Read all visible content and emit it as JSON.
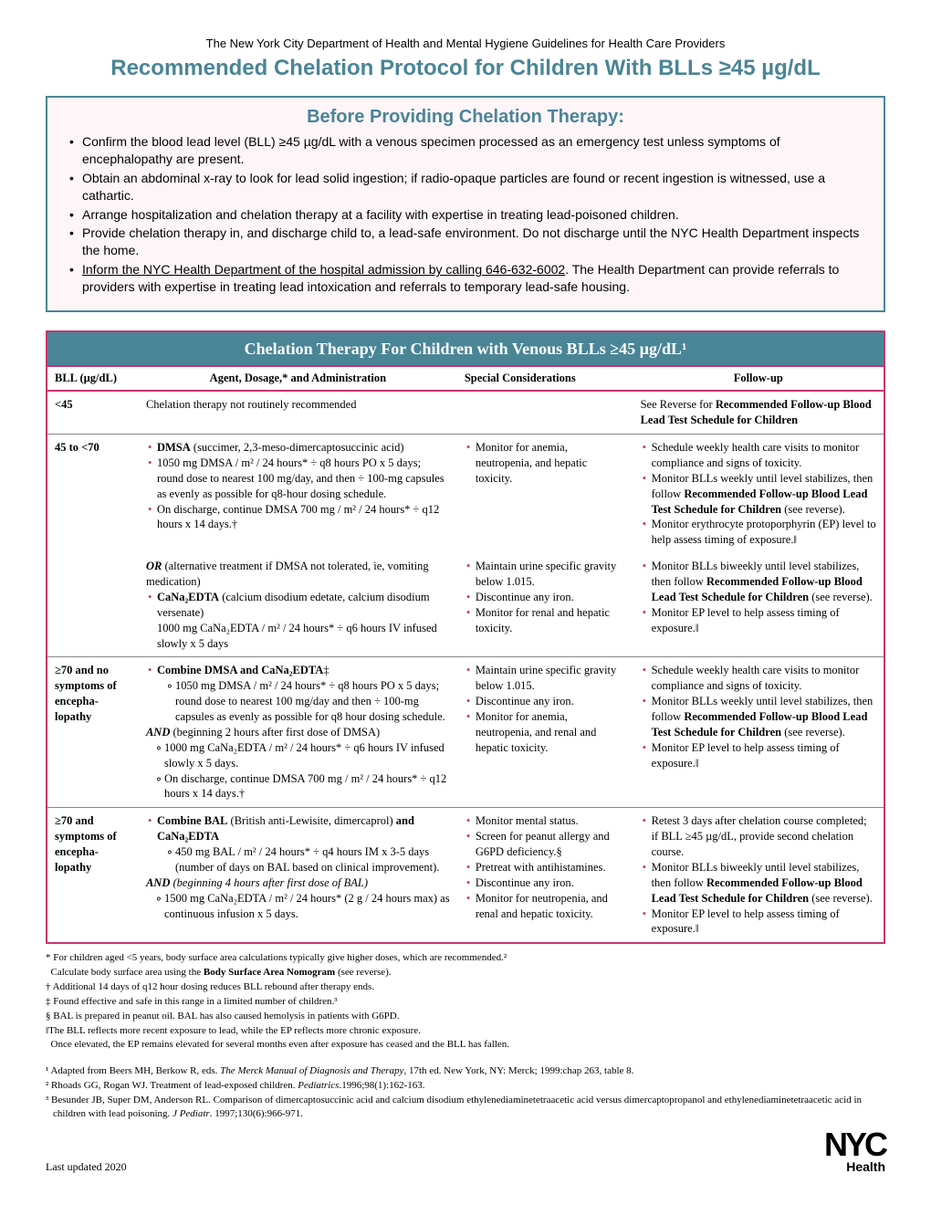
{
  "header_line": "The New York City Department of Health and Mental Hygiene Guidelines for Health Care Providers",
  "main_title": "Recommended Chelation Protocol for Children With BLLs ≥45 µg/dL",
  "before_box": {
    "title": "Before Providing Chelation Therapy:",
    "bullets": [
      "Confirm the blood lead level (BLL) ≥45 µg/dL with a venous specimen processed as an emergency test unless symptoms of encephalopathy are present.",
      "Obtain an abdominal x-ray to look for lead solid ingestion; if radio-opaque particles are found or recent ingestion is witnessed, use a cathartic.",
      "Arrange hospitalization and chelation therapy at a facility with expertise in treating lead-poisoned children.",
      "Provide chelation therapy in, and discharge child to, a lead-safe environment. Do not discharge until the NYC Health Department inspects the home.",
      "<u>Inform the NYC Health Department of the hospital admission by calling 646-632-6002</u>. The Health Department can provide referrals to providers with expertise in treating lead intoxication and referrals to temporary lead-safe housing."
    ]
  },
  "table": {
    "title": "Chelation Therapy For Children with Venous BLLs ≥45 µg/dL¹",
    "columns": [
      "BLL (µg/dL)",
      "Agent, Dosage,* and Administration",
      "Special Considerations",
      "Follow-up"
    ],
    "rows": [
      {
        "bll": "<45",
        "agent_plain": "Chelation therapy not routinely recommended",
        "special": [],
        "followup_plain": "See Reverse for <b>Recommended Follow-up Blood Lead Test Schedule for Children</b>"
      },
      {
        "bll": "45 to <70",
        "agent": [
          "<b>DMSA</b> (succimer, 2,3-meso-dimercaptosuccinic acid)",
          "1050 mg DMSA / m² / 24 hours* ÷ q8 hours PO x 5 days; round dose to nearest 100 mg/day, and then ÷ 100-mg capsules as evenly as possible for q8-hour dosing schedule.",
          "On discharge, continue DMSA 700 mg / m² / 24 hours* ÷ q12 hours x 14 days.†"
        ],
        "special": [
          "Monitor for anemia, neutropenia, and hepatic toxicity."
        ],
        "followup": [
          "Schedule weekly health care visits to monitor compliance and signs of toxicity.",
          "Monitor BLLs weekly until level stabilizes, then follow <b>Recommended Follow-up Blood Lead Test Schedule for Children</b> (see reverse).",
          "Monitor erythrocyte protoporphyrin (EP) level to help assess timing of exposure.‖"
        ]
      },
      {
        "bll": "",
        "no_top": true,
        "agent_pre": "<i><b>OR</b></i> (alternative treatment if DMSA not tolerated, ie, vomiting medication)",
        "agent": [
          "<b>CaNa₂EDTA</b> (calcium disodium edetate, calcium disodium versenate)<br>1000 mg CaNa₂EDTA / m² / 24 hours* ÷ q6 hours IV infused slowly x 5 days"
        ],
        "special": [
          "Maintain urine specific gravity below 1.015.",
          "Discontinue any iron.",
          "Monitor for renal and hepatic toxicity."
        ],
        "followup": [
          "Monitor BLLs biweekly until level stabilizes, then follow <b>Recommended Follow-up Blood Lead Test Schedule for Children</b> (see reverse).",
          "Monitor EP level to help assess timing of exposure.‖"
        ]
      },
      {
        "bll": "≥70 and no symptoms of encepha-lopathy",
        "agent_pre_bullet": "<b>Combine DMSA and CaNa₂EDTA</b>‡",
        "agent_sub": [
          "1050 mg DMSA / m² / 24 hours* ÷ q8 hours PO x 5 days; round dose to nearest 100 mg/day and then ÷ 100-mg capsules as evenly as possible for q8 hour dosing schedule."
        ],
        "agent_mid": "<i><b>AND</b></i> (beginning 2 hours after first dose of DMSA)",
        "agent_sub2": [
          "1000 mg CaNa₂EDTA / m² / 24 hours* ÷ q6 hours IV infused slowly x 5 days.",
          "On discharge, continue DMSA 700 mg / m² / 24 hours* ÷ q12 hours x 14 days.†"
        ],
        "special": [
          "Maintain urine specific gravity below 1.015.",
          "Discontinue any iron.",
          "Monitor for anemia, neutropenia, and renal and hepatic toxicity."
        ],
        "followup": [
          "Schedule weekly health care visits to monitor compliance and signs of toxicity.",
          "Monitor BLLs weekly until level stabilizes, then follow <b>Recommended Follow-up Blood Lead Test Schedule for Children</b> (see reverse).",
          "Monitor EP level to help assess timing of exposure.‖"
        ]
      },
      {
        "bll": "≥70 and symptoms of encepha-lopathy",
        "agent_pre_bullet": "<b>Combine BAL</b> (British anti-Lewisite, dimercaprol) <b>and CaNa₂EDTA</b>",
        "agent_sub": [
          "450 mg BAL / m² / 24 hours* ÷ q4 hours IM x 3-5 days (number of days on BAL based on clinical improvement)."
        ],
        "agent_mid": "<i><b>AND</b> (beginning 4 hours after first dose of BAL)</i>",
        "agent_sub2": [
          "1500 mg CaNa₂EDTA / m² / 24 hours* (2 g / 24 hours max) as continuous infusion x 5 days."
        ],
        "special": [
          "Monitor mental status.",
          "Screen for peanut allergy and G6PD deficiency.§",
          "Pretreat with antihistamines.",
          "Discontinue any iron.",
          "Monitor for neutropenia, and renal and hepatic toxicity."
        ],
        "followup": [
          "Retest 3 days after chelation course completed; if BLL ≥45 µg/dL, provide second chelation course.",
          "Monitor BLLs biweekly until level stabilizes, then follow <b>Recommended Follow-up Blood Lead Test Schedule for Children</b> (see reverse).",
          "Monitor EP level to help assess timing of exposure.‖"
        ]
      }
    ]
  },
  "footnotes": [
    "* For children aged <5 years, body surface area calculations typically give higher doses, which are recommended.²",
    "&nbsp;&nbsp;Calculate body surface area using the <b>Body Surface Area Nomogram</b> (see reverse).",
    "† Additional 14 days of q12 hour dosing reduces BLL rebound after therapy ends.",
    "‡ Found effective and safe in this range in a limited number of children.³",
    "§ BAL is prepared in peanut oil. BAL has also caused hemolysis in patients with G6PD.",
    "‖The BLL reflects more recent exposure to lead, while the EP reflects more chronic exposure.",
    "&nbsp;&nbsp;Once elevated, the EP remains elevated for several months even after exposure has ceased and the BLL has fallen."
  ],
  "references": [
    "¹ Adapted from Beers MH, Berkow R, eds. <i>The Merck Manual of Diagnosis and Therapy</i>, 17th ed. New York, NY: Merck; 1999:chap 263, table 8.",
    "² Rhoads GG, Rogan WJ. Treatment of lead-exposed children. <i>Pediatrics</i>.1996;98(1):162-163.",
    "³ Besunder JB, Super DM, Anderson RL. Comparison of dimercaptosuccinic acid and calcium disodium ethylenediaminetetraacetic acid versus dimercaptopropanol and ethylenediaminetetraacetic acid in children with lead poisoning. <i>J Pediatr</i>. 1997;130(6):966-971."
  ],
  "last_updated": "Last updated 2020",
  "logo": {
    "top": "NYC",
    "bottom": "Health"
  },
  "colors": {
    "teal": "#4a8596",
    "magenta": "#c7356f",
    "pink_bg": "#fdf5f8"
  }
}
